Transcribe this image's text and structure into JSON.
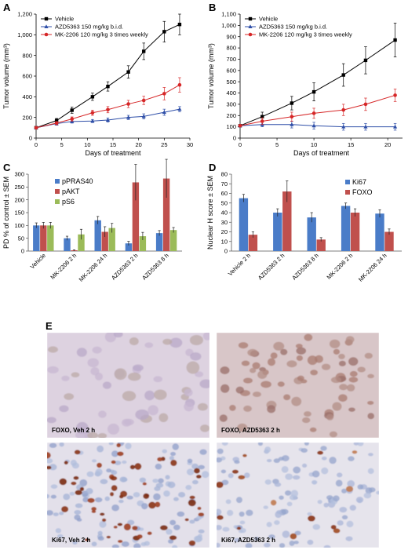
{
  "chart_data": [
    {
      "panel": "A",
      "type": "line",
      "xlabel": "Days of treatment",
      "ylabel": "Tumor volume (mm³)",
      "xlim": [
        0,
        30
      ],
      "ylim": [
        0,
        1200
      ],
      "xticks": [
        "0",
        "5",
        "10",
        "15",
        "20",
        "25",
        "30"
      ],
      "yticks": [
        "0",
        "200",
        "400",
        "600",
        "800",
        "1,000",
        "1,200"
      ],
      "legend_position": "top-left",
      "series": [
        {
          "name": "Vehicle",
          "color": "#000000",
          "marker": "square",
          "x": [
            0,
            4,
            7,
            11,
            14,
            18,
            21,
            25,
            28
          ],
          "y": [
            100,
            170,
            270,
            400,
            500,
            640,
            840,
            1030,
            1100
          ],
          "err": [
            10,
            20,
            30,
            35,
            45,
            60,
            80,
            100,
            100
          ]
        },
        {
          "name": "AZD5363  150 mg/kg b.i.d.",
          "color": "#2f4fa8",
          "marker": "triangle",
          "x": [
            0,
            4,
            7,
            11,
            14,
            18,
            21,
            25,
            28
          ],
          "y": [
            100,
            140,
            160,
            165,
            175,
            200,
            210,
            250,
            280
          ],
          "err": [
            8,
            15,
            15,
            15,
            20,
            20,
            25,
            30,
            25
          ]
        },
        {
          "name": "MK-2206  120 mg/kg 3 times weekly",
          "color": "#d62728",
          "marker": "circle",
          "x": [
            0,
            4,
            7,
            11,
            14,
            18,
            21,
            25,
            28
          ],
          "y": [
            100,
            145,
            185,
            245,
            275,
            330,
            365,
            430,
            515
          ],
          "err": [
            8,
            15,
            20,
            25,
            30,
            35,
            40,
            60,
            70
          ]
        }
      ]
    },
    {
      "panel": "B",
      "type": "line",
      "xlabel": "Days of treatment",
      "ylabel": "Tumor volume (mm³)",
      "xlim": [
        0,
        22
      ],
      "ylim": [
        0,
        1100
      ],
      "xticks": [
        "0",
        "5",
        "10",
        "15",
        "20"
      ],
      "yticks": [
        "0",
        "100",
        "200",
        "300",
        "400",
        "500",
        "600",
        "700",
        "800",
        "900",
        "1,000",
        "1,100"
      ],
      "legend_position": "top-left",
      "series": [
        {
          "name": "Vehicle",
          "color": "#000000",
          "marker": "square",
          "x": [
            0,
            3,
            7,
            10,
            14,
            17,
            21
          ],
          "y": [
            110,
            190,
            310,
            410,
            560,
            690,
            870
          ],
          "err": [
            10,
            40,
            60,
            80,
            100,
            120,
            150
          ]
        },
        {
          "name": "AZD5363  150 mg/kg b.i.d.",
          "color": "#2f4fa8",
          "marker": "triangle",
          "x": [
            0,
            3,
            7,
            10,
            14,
            17,
            21
          ],
          "y": [
            110,
            120,
            120,
            110,
            100,
            100,
            100
          ],
          "err": [
            10,
            20,
            30,
            30,
            30,
            30,
            30
          ]
        },
        {
          "name": "MK-2206  120 mg/kg 3 times weekly",
          "color": "#d62728",
          "marker": "circle",
          "x": [
            0,
            3,
            7,
            10,
            14,
            17,
            21
          ],
          "y": [
            110,
            150,
            190,
            220,
            250,
            300,
            380
          ],
          "err": [
            10,
            30,
            40,
            45,
            50,
            55,
            55
          ]
        }
      ]
    },
    {
      "panel": "C",
      "type": "bar",
      "ylabel": "PD % of control ± SEM",
      "ylim": [
        0,
        300
      ],
      "yticks": [
        "0",
        "50",
        "100",
        "150",
        "200",
        "250",
        "300"
      ],
      "categories": [
        "Vehicle",
        "MK-2206  2 h",
        "MK-2206  24 h",
        "AZD5363  2 h",
        "AZD5363  8 h"
      ],
      "legend_position": "top-left",
      "series": [
        {
          "name": "pPRAS40",
          "color": "#4a7cc8",
          "values": [
            100,
            50,
            120,
            30,
            70
          ],
          "err": [
            10,
            8,
            15,
            8,
            10
          ]
        },
        {
          "name": "pAKT",
          "color": "#c0504d",
          "values": [
            100,
            3,
            75,
            268,
            283
          ],
          "err": [
            12,
            2,
            20,
            70,
            75
          ]
        },
        {
          "name": "pS6",
          "color": "#9bbb59",
          "values": [
            100,
            65,
            90,
            58,
            82
          ],
          "err": [
            12,
            20,
            18,
            15,
            10
          ]
        }
      ]
    },
    {
      "panel": "D",
      "type": "bar",
      "ylabel": "Nuclear H score ± SEM",
      "ylim": [
        0,
        80
      ],
      "yticks": [
        "0",
        "10",
        "20",
        "30",
        "40",
        "50",
        "60",
        "70",
        "80"
      ],
      "categories": [
        "Vehicle 2 h",
        "AZD5363 2 h",
        "AZD5363  8 h",
        "MK-2206  2 h",
        "MK-2206 24 h"
      ],
      "legend_position": "top-right",
      "series": [
        {
          "name": "Ki67",
          "color": "#4a7cc8",
          "values": [
            55,
            40,
            35,
            47,
            39
          ],
          "err": [
            4,
            4,
            5,
            3,
            4
          ]
        },
        {
          "name": "FOXO",
          "color": "#c0504d",
          "values": [
            17,
            62,
            12,
            40,
            20
          ],
          "err": [
            3,
            11,
            2,
            4,
            3
          ]
        }
      ]
    }
  ],
  "panels": {
    "A": "A",
    "B": "B",
    "C": "C",
    "D": "D",
    "E": "E"
  },
  "micrographs": [
    {
      "label": "FOXO, Veh 2 h",
      "stain": "foxo-veh"
    },
    {
      "label": "FOXO, AZD5363  2 h",
      "stain": "foxo-azd"
    },
    {
      "label": "Ki67, Veh 2 h",
      "stain": "ki67-veh"
    },
    {
      "label": "Ki67, AZD5363 2 h",
      "stain": "ki67-azd"
    }
  ]
}
